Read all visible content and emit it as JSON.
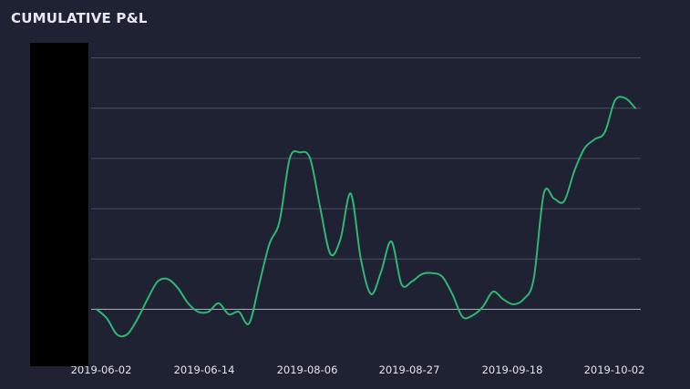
{
  "panel": {
    "title": "CUMULATIVE P&L"
  },
  "colors": {
    "background": "#1f2232",
    "gridline": "#4b4f63",
    "zero_line": "#a9acb8",
    "series_line": "#2fb673",
    "redaction": "#000000"
  },
  "chart_data": {
    "type": "line",
    "title": "",
    "xlabel": "",
    "ylabel": "",
    "x_tick_labels": [
      "2019-06-02",
      "2019-06-14",
      "2019-08-06",
      "2019-08-27",
      "2019-09-18",
      "2019-10-02"
    ],
    "ylim": [
      -1,
      5
    ],
    "y_gridlines": [
      0,
      1,
      2,
      3,
      4,
      5
    ],
    "grid": "horizontal",
    "y_tick_labels_redacted": true,
    "series": [
      {
        "values": [
          0,
          -0.18,
          -0.5,
          -0.5,
          -0.2,
          0.2,
          0.55,
          0.6,
          0.42,
          0.12,
          -0.05,
          -0.05,
          0.12,
          -0.1,
          -0.05,
          -0.28,
          0.5,
          1.3,
          1.75,
          3.0,
          3.12,
          3.0,
          2.02,
          1.1,
          1.4,
          2.3,
          1.0,
          0.3,
          0.75,
          1.35,
          0.5,
          0.55,
          0.7,
          0.72,
          0.65,
          0.3,
          -0.15,
          -0.12,
          0.05,
          0.35,
          0.2,
          0.1,
          0.2,
          0.6,
          2.3,
          2.2,
          2.15,
          2.75,
          3.2,
          3.38,
          3.52,
          4.15,
          4.2,
          4.0
        ]
      }
    ]
  }
}
